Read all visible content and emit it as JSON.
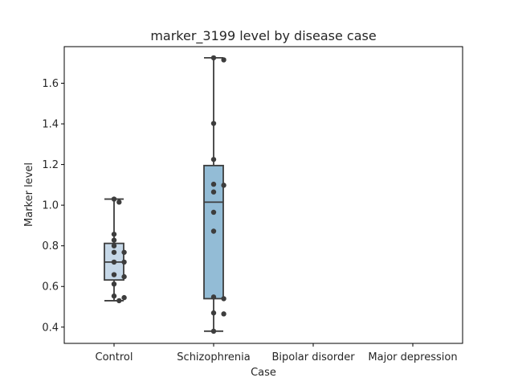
{
  "chart_data": {
    "type": "box",
    "title": "marker_3199 level by disease case",
    "xlabel": "Case",
    "ylabel": "Marker level",
    "categories": [
      "Control",
      "Schizophrenia",
      "Bipolar disorder",
      "Major depression"
    ],
    "ylim": [
      0.32,
      1.78
    ],
    "yticks": [
      0.4,
      0.6,
      0.8,
      1.0,
      1.2,
      1.4,
      1.6
    ],
    "ytick_labels": [
      "0.4",
      "0.6",
      "0.8",
      "1.0",
      "1.2",
      "1.4",
      "1.6"
    ],
    "grid": false,
    "boxes": [
      {
        "category": "Control",
        "min": 0.53,
        "q1": 0.632,
        "median": 0.72,
        "q3": 0.812,
        "max": 1.03,
        "color": "#c6d8e8"
      },
      {
        "category": "Schizophrenia",
        "min": 0.38,
        "q1": 0.54,
        "median": 1.015,
        "q3": 1.195,
        "max": 1.725,
        "color": "#93bcd6"
      }
    ],
    "points": [
      {
        "category": "Control",
        "values": [
          1.03,
          1.015,
          0.857,
          0.828,
          0.8,
          0.768,
          0.768,
          0.72,
          0.72,
          0.658,
          0.648,
          0.612,
          0.553,
          0.545,
          0.53
        ]
      },
      {
        "category": "Schizophrenia",
        "values": [
          1.725,
          1.715,
          1.402,
          1.225,
          1.103,
          1.098,
          1.065,
          0.965,
          0.872,
          0.548,
          0.54,
          0.47,
          0.465,
          0.38
        ]
      }
    ],
    "colors": {
      "box_edge": "#3d3d3d",
      "point": "#3d3d3d"
    }
  }
}
